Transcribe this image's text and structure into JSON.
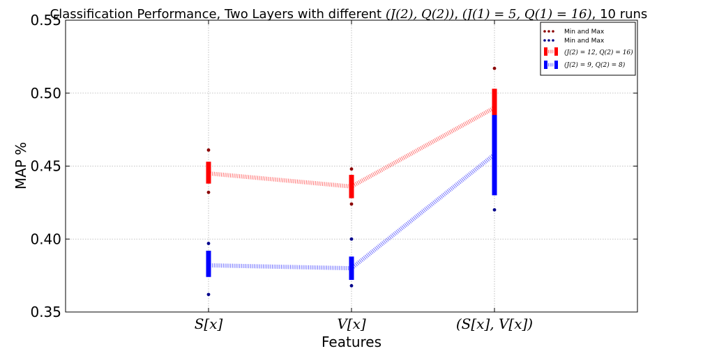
{
  "chart_data": {
    "type": "line",
    "title": {
      "prefix": "Classification Performance, Two Layers with different ",
      "math1": "(J(2), Q(2))",
      "sep": ", ",
      "math2": "(J(1) = 5, Q(1) = 16)",
      "suffix": ", 10 runs"
    },
    "xlabel": "Features",
    "ylabel": "MAP %",
    "categories": [
      "S[x]",
      "V[x]",
      "(S[x], V[x])"
    ],
    "xlim": [
      -1,
      3
    ],
    "ylim": [
      0.35,
      0.55
    ],
    "yticks": [
      {
        "value": 0.35,
        "label": "0.35"
      },
      {
        "value": 0.4,
        "label": "0.40"
      },
      {
        "value": 0.45,
        "label": "0.45"
      },
      {
        "value": 0.5,
        "label": "0.50"
      },
      {
        "value": 0.55,
        "label": "0.55"
      }
    ],
    "grid": true,
    "legend_position": "top-right",
    "series": [
      {
        "name": "(J(2) = 12, Q(2) = 16)",
        "color": "#ff0000",
        "mean": [
          0.445,
          0.436,
          0.49
        ],
        "lower": [
          0.438,
          0.428,
          0.478
        ],
        "upper": [
          0.453,
          0.444,
          0.503
        ],
        "min": [
          0.432,
          0.424,
          null
        ],
        "max": [
          0.461,
          0.448,
          0.517
        ],
        "minmax_color": "#8b0000"
      },
      {
        "name": "(J(2) = 9, Q(2) = 8)",
        "color": "#0000ff",
        "mean": [
          0.382,
          0.38,
          0.458
        ],
        "lower": [
          0.374,
          0.372,
          0.43
        ],
        "upper": [
          0.392,
          0.388,
          0.485
        ],
        "min": [
          0.362,
          0.368,
          0.42
        ],
        "max": [
          0.397,
          0.4,
          null
        ],
        "minmax_color": "#00008b"
      }
    ],
    "legend": [
      {
        "label": "Min and Max",
        "kind": "minmax",
        "color": "#8b0000"
      },
      {
        "label": "Min and Max",
        "kind": "minmax",
        "color": "#00008b"
      },
      {
        "label": "(J(2) = 12, Q(2) = 16)",
        "kind": "series",
        "color": "#ff0000"
      },
      {
        "label": "(J(2) = 9, Q(2) = 8)",
        "kind": "series",
        "color": "#0000ff"
      }
    ]
  }
}
